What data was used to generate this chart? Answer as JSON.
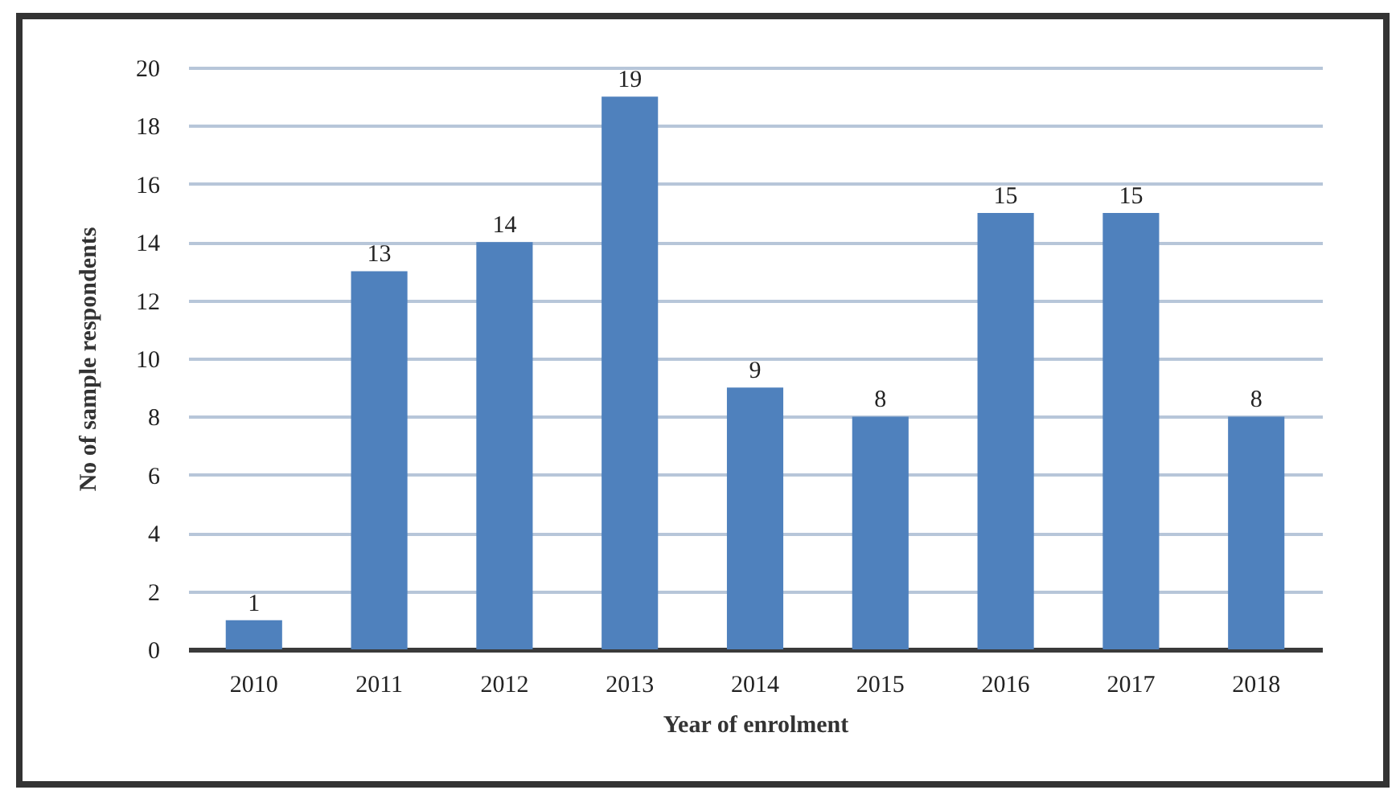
{
  "chart_data": {
    "type": "bar",
    "xlabel": "Year of enrolment",
    "ylabel": "No of sample respondents",
    "categories": [
      "2010",
      "2011",
      "2012",
      "2013",
      "2014",
      "2015",
      "2016",
      "2017",
      "2018"
    ],
    "values": [
      1,
      13,
      14,
      19,
      9,
      8,
      15,
      15,
      8
    ],
    "color": "#4f81bd",
    "ylim": [
      0,
      20
    ],
    "yticks": [
      0,
      2,
      4,
      6,
      8,
      10,
      12,
      14,
      16,
      18,
      20
    ],
    "grid": "y",
    "data_labels": true
  }
}
